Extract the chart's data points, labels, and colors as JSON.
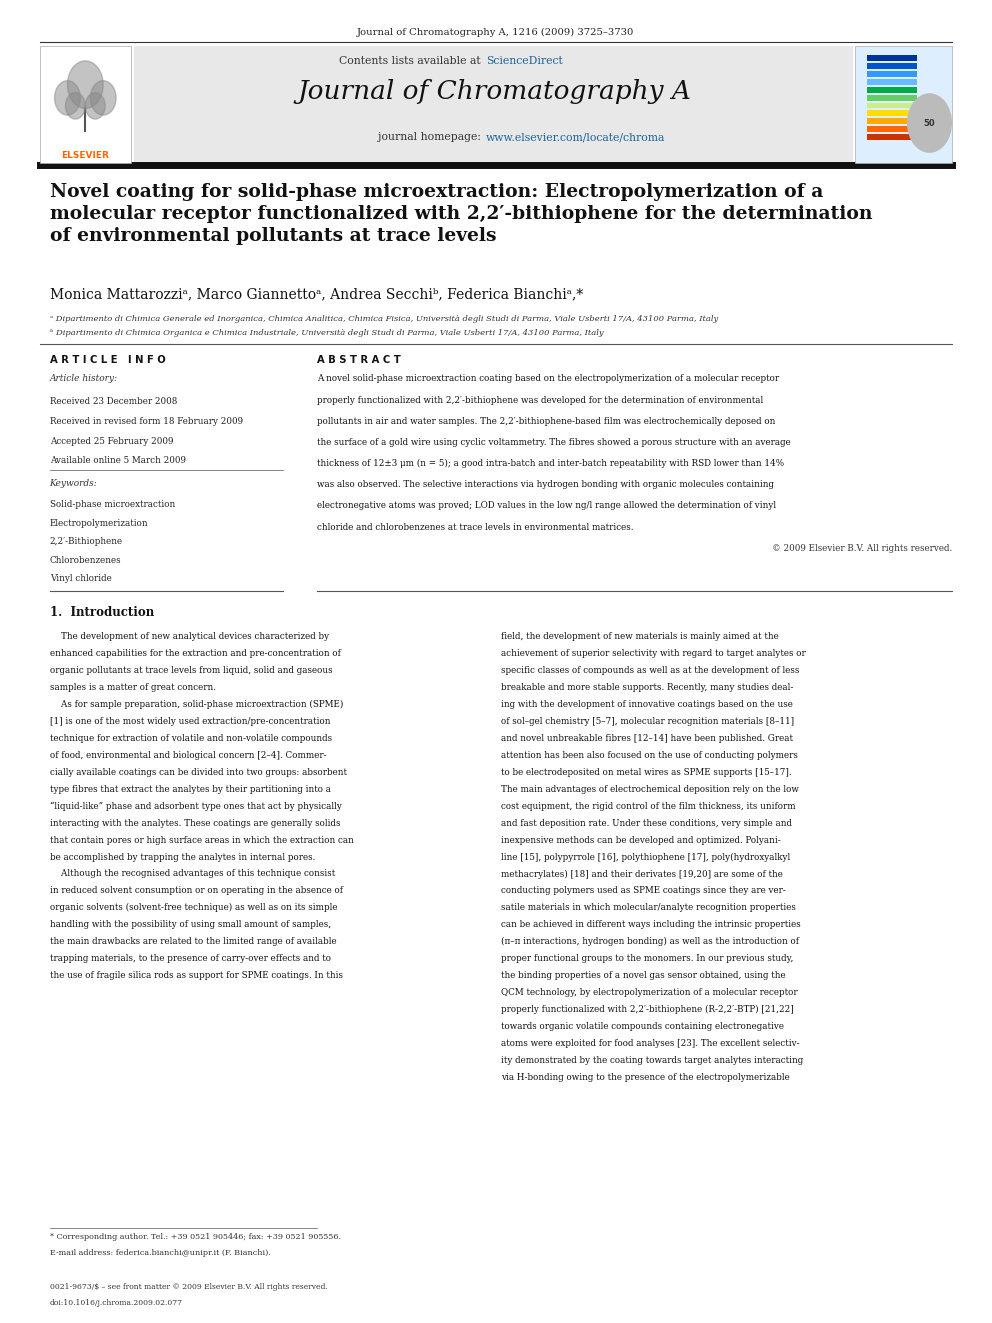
{
  "page_width": 9.92,
  "page_height": 13.23,
  "bg_color": "#ffffff",
  "top_journal_ref": "Journal of Chromatography A, 1216 (2009) 3725–3730",
  "journal_name": "Journal of Chromatography A",
  "contents_text": "Contents lists available at ",
  "sciencedirect_text": "ScienceDirect",
  "homepage_text": "journal homepage: ",
  "homepage_url": "www.elsevier.com/locate/chroma",
  "header_bg": "#e8e8e8",
  "elsevier_color": "#ff6600",
  "sciencedirect_color": "#1a6496",
  "url_color": "#1a6496",
  "paper_title": "Novel coating for solid-phase microextraction: Electropolymerization of a\nmolecular receptor functionalized with 2,2′-bithiophene for the determination\nof environmental pollutants at trace levels",
  "authors": "Monica Mattarozziᵃ, Marco Giannettoᵃ, Andrea Secchiᵇ, Federica Bianchiᵃ,*",
  "affil_a": "ᵃ Dipartimento di Chimica Generale ed Inorganica, Chimica Analitica, Chimica Fisica, Università degli Studi di Parma, Viale Usberti 17/A, 43100 Parma, Italy",
  "affil_b": "ᵇ Dipartimento di Chimica Organica e Chimica Industriale, Università degli Studi di Parma, Viale Usberti 17/A, 43100 Parma, Italy",
  "article_info_header": "A R T I C L E   I N F O",
  "abstract_header": "A B S T R A C T",
  "article_history_label": "Article history:",
  "received": "Received 23 December 2008",
  "received_revised": "Received in revised form 18 February 2009",
  "accepted": "Accepted 25 February 2009",
  "available": "Available online 5 March 2009",
  "keywords_label": "Keywords:",
  "keywords": [
    "Solid-phase microextraction",
    "Electropolymerization",
    "2,2′-Bithiophene",
    "Chlorobenzenes",
    "Vinyl chloride"
  ],
  "abstract_lines": [
    "A novel solid-phase microextraction coating based on the electropolymerization of a molecular receptor",
    "properly functionalized with 2,2′-bithiophene was developed for the determination of environmental",
    "pollutants in air and water samples. The 2,2′-bithiophene-based film was electrochemically deposed on",
    "the surface of a gold wire using cyclic voltammetry. The fibres showed a porous structure with an average",
    "thickness of 12±3 μm (n = 5); a good intra-batch and inter-batch repeatability with RSD lower than 14%",
    "was also observed. The selective interactions via hydrogen bonding with organic molecules containing",
    "electronegative atoms was proved; LOD values in the low ng/l range allowed the determination of vinyl",
    "chloride and chlorobenzenes at trace levels in environmental matrices."
  ],
  "copyright": "© 2009 Elsevier B.V. All rights reserved.",
  "intro_header": "1.  Introduction",
  "intro_col1_lines": [
    "    The development of new analytical devices characterized by",
    "enhanced capabilities for the extraction and pre-concentration of",
    "organic pollutants at trace levels from liquid, solid and gaseous",
    "samples is a matter of great concern.",
    "    As for sample preparation, solid-phase microextraction (SPME)",
    "[1] is one of the most widely used extraction/pre-concentration",
    "technique for extraction of volatile and non-volatile compounds",
    "of food, environmental and biological concern [2–4]. Commer-",
    "cially available coatings can be divided into two groups: absorbent",
    "type fibres that extract the analytes by their partitioning into a",
    "“liquid-like” phase and adsorbent type ones that act by physically",
    "interacting with the analytes. These coatings are generally solids",
    "that contain pores or high surface areas in which the extraction can",
    "be accomplished by trapping the analytes in internal pores.",
    "    Although the recognised advantages of this technique consist",
    "in reduced solvent consumption or on operating in the absence of",
    "organic solvents (solvent-free technique) as well as on its simple",
    "handling with the possibility of using small amount of samples,",
    "the main drawbacks are related to the limited range of available",
    "trapping materials, to the presence of carry-over effects and to",
    "the use of fragile silica rods as support for SPME coatings. In this"
  ],
  "intro_col2_lines": [
    "field, the development of new materials is mainly aimed at the",
    "achievement of superior selectivity with regard to target analytes or",
    "specific classes of compounds as well as at the development of less",
    "breakable and more stable supports. Recently, many studies deal-",
    "ing with the development of innovative coatings based on the use",
    "of sol–gel chemistry [5–7], molecular recognition materials [8–11]",
    "and novel unbreakable fibres [12–14] have been published. Great",
    "attention has been also focused on the use of conducting polymers",
    "to be electrodeposited on metal wires as SPME supports [15–17].",
    "The main advantages of electrochemical deposition rely on the low",
    "cost equipment, the rigid control of the film thickness, its uniform",
    "and fast deposition rate. Under these conditions, very simple and",
    "inexpensive methods can be developed and optimized. Polyani-",
    "line [15], polypyrrole [16], polythiophene [17], poly(hydroxyalkyl",
    "methacrylates) [18] and their derivates [19,20] are some of the",
    "conducting polymers used as SPME coatings since they are ver-",
    "satile materials in which molecular/analyte recognition properties",
    "can be achieved in different ways including the intrinsic properties",
    "(π–π interactions, hydrogen bonding) as well as the introduction of",
    "proper functional groups to the monomers. In our previous study,",
    "the binding properties of a novel gas sensor obtained, using the",
    "QCM technology, by electropolymerization of a molecular receptor",
    "properly functionalized with 2,2′-bithiophene (R-2,2′-BTP) [21,22]",
    "towards organic volatile compounds containing electronegative",
    "atoms were exploited for food analyses [23]. The excellent selectiv-",
    "ity demonstrated by the coating towards target analytes interacting",
    "via H-bonding owing to the presence of the electropolymerizable"
  ],
  "footnote_star": "* Corresponding author. Tel.: +39 0521 905446; fax: +39 0521 905556.",
  "footnote_email": "E-mail address: federica.bianchi@unipr.it (F. Bianchi).",
  "footer_issn": "0021-9673/$ – see front matter © 2009 Elsevier B.V. All rights reserved.",
  "footer_doi": "doi:10.1016/j.chroma.2009.02.077"
}
